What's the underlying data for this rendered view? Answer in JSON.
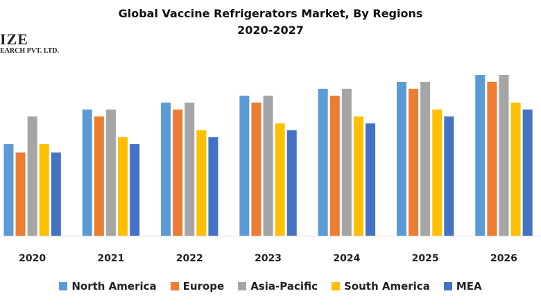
{
  "logo": {
    "line1": "IZE",
    "line2": "EARCH PVT. LTD."
  },
  "chart_data": {
    "type": "bar",
    "title": "Global Vaccine Refrigerators Market, By Regions",
    "subtitle": "2020-2027",
    "categories": [
      "2020",
      "2021",
      "2022",
      "2023",
      "2024",
      "2025",
      "2026"
    ],
    "series": [
      {
        "name": "North America",
        "color": "#5B9BD5",
        "values": [
          13.2,
          18.2,
          19.2,
          20.2,
          21.2,
          22.2,
          23.2
        ]
      },
      {
        "name": "Europe",
        "color": "#ED7D31",
        "values": [
          12,
          17.2,
          18.2,
          19.2,
          20.2,
          21.2,
          22.2
        ]
      },
      {
        "name": "Asia-Pacific",
        "color": "#A5A5A5",
        "values": [
          17.2,
          18.2,
          19.2,
          20.2,
          21.2,
          22.2,
          23.2
        ]
      },
      {
        "name": "South America",
        "color": "#FFC000",
        "values": [
          13.2,
          14.2,
          15.2,
          16.2,
          17.2,
          18.2,
          19.2
        ]
      },
      {
        "name": "MEA",
        "color": "#4472C4",
        "values": [
          12,
          13.2,
          14.2,
          15.2,
          16.2,
          17.2,
          18.2
        ]
      }
    ],
    "xlabel": "",
    "ylabel": "",
    "grid": false,
    "legend": "bottom",
    "ylim": [
      0,
      25
    ]
  }
}
